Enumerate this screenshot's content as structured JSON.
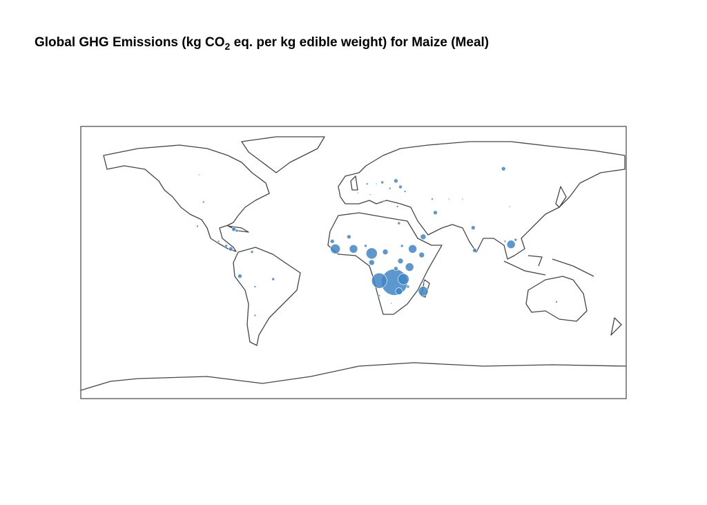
{
  "chart_data": {
    "type": "bubble",
    "title": {
      "text": "Global GHG Emissions (kg CO",
      "subscript": "2",
      "text_after": " eq. per kg edible weight) for Maize (Meal)"
    },
    "xlim": [
      -180,
      180
    ],
    "ylim": [
      -90,
      90
    ],
    "color": "#3f86c6",
    "x": [
      99,
      -102,
      -99,
      -103,
      -79,
      -77,
      -89,
      -84,
      -81,
      -67,
      -75,
      -65,
      -53,
      -65,
      19,
      28,
      31,
      9,
      15,
      24,
      3,
      11,
      20,
      29,
      34,
      52,
      54,
      63,
      72,
      103,
      79,
      100,
      104,
      107,
      80,
      30,
      -3,
      8,
      -14,
      -12,
      0,
      12,
      21,
      12,
      32,
      39,
      46,
      45,
      31,
      28,
      37,
      17,
      27,
      33,
      30,
      36,
      17,
      46,
      25,
      46,
      134
    ],
    "y": [
      62,
      58,
      40,
      24,
      22,
      21,
      14,
      11,
      9,
      7,
      -9,
      -16,
      -11,
      -35,
      53,
      54,
      50,
      52,
      52,
      49,
      46,
      45,
      41,
      37,
      47,
      42,
      33,
      42,
      42,
      37,
      23,
      14,
      12,
      15,
      8,
      26,
      17,
      11,
      14,
      9,
      9,
      6,
      7,
      0,
      11,
      9,
      17,
      5,
      1,
      -4,
      -3,
      -12,
      -13,
      -11,
      -19,
      -16,
      -22,
      -19,
      -27,
      -13,
      -26
    ],
    "sizes": [
      0.44,
      0.05,
      0.11,
      0.11,
      0.44,
      0.2,
      0.11,
      0.2,
      0.44,
      0.2,
      0.44,
      0.11,
      0.2,
      0.11,
      0.2,
      0.44,
      0.31,
      0.11,
      0.05,
      0.11,
      0.05,
      0.05,
      0.05,
      0.11,
      0.11,
      0.11,
      0.44,
      0.05,
      0.05,
      0.05,
      0.44,
      0.11,
      1.78,
      0.2,
      0.44,
      0.2,
      0.44,
      0.2,
      0.44,
      2.42,
      1.78,
      3.16,
      0.79,
      0.79,
      0.2,
      1.78,
      0.79,
      0.79,
      0.79,
      0.44,
      1.78,
      5.98,
      17.8,
      3.16,
      1.23,
      0.2,
      0.11,
      2.42,
      0.05,
      0.11,
      0.11
    ]
  }
}
